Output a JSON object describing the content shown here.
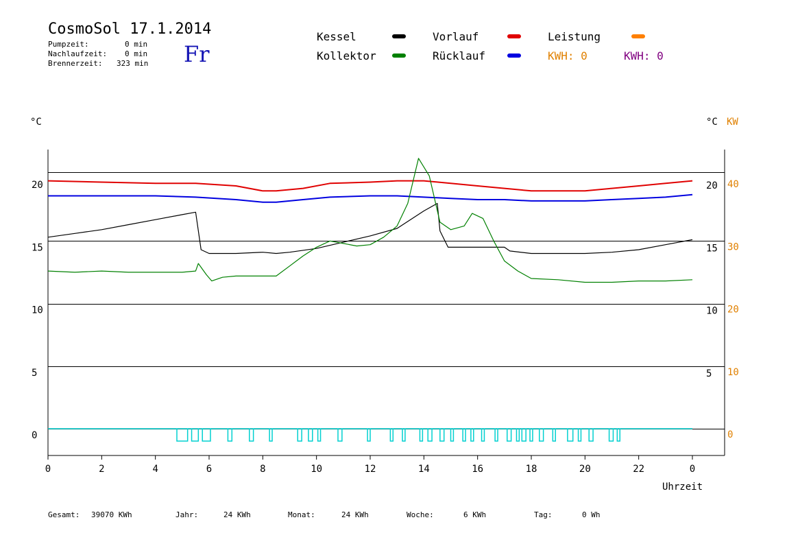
{
  "header": {
    "title": "CosmoSol 17.1.2014",
    "pumpzeit_label": "Pumpzeit:",
    "pumpzeit_value": "0 min",
    "nachlauf_label": "Nachlaufzeit:",
    "nachlauf_value": "0 min",
    "brenner_label": "Brennerzeit:",
    "brenner_value": "323 min",
    "day": "Fr"
  },
  "legend": {
    "kessel": "Kessel",
    "kollektor": "Kollektor",
    "vorlauf": "Vorlauf",
    "ruecklauf": "Rücklauf",
    "leistung": "Leistung",
    "kwh_orange": "KWH: 0",
    "kwh_purple": "KWH: 0"
  },
  "colors": {
    "kessel": "#000000",
    "kollektor": "#008000",
    "vorlauf": "#e00000",
    "ruecklauf": "#0000e0",
    "leistung": "#ff8000",
    "kwh2": "#800080",
    "pump": "#00d0d0",
    "orange_axis": "#e08000"
  },
  "axes": {
    "left_unit": "°C",
    "right_unit": "°C",
    "right_unit2": "KW",
    "xlabel": "Uhrzeit"
  },
  "footer": {
    "gesamt_label": "Gesamt:",
    "gesamt_value": "39070 KWh",
    "jahr_label": "Jahr:",
    "jahr_value": "24 KWh",
    "monat_label": "Monat:",
    "monat_value": "24 KWh",
    "woche_label": "Woche:",
    "woche_value": "6 KWh",
    "tag_label": "Tag:",
    "tag_value": "0 Wh"
  },
  "chart_data": {
    "type": "line",
    "xlabel": "Uhrzeit",
    "ylabel": "°C",
    "xlim": [
      0,
      24
    ],
    "ylim": [
      -2,
      22
    ],
    "x_tick_labels": [
      "0",
      "2",
      "4",
      "6",
      "8",
      "10",
      "12",
      "14",
      "16",
      "18",
      "20",
      "22",
      "0"
    ],
    "y_left_ticks": [
      0,
      5,
      10,
      15,
      20
    ],
    "y_right_inner_ticks": [
      5,
      10,
      15,
      20
    ],
    "y_right_kw_ticks": [
      0,
      10,
      20,
      30,
      40
    ],
    "series": [
      {
        "name": "Vorlauf",
        "color": "#e00000",
        "x": [
          0,
          2,
          4,
          5.5,
          7,
          8,
          8.5,
          9.5,
          10.5,
          12,
          13,
          14,
          15,
          16,
          17,
          18,
          19,
          20,
          21,
          22,
          23,
          24
        ],
        "y": [
          19.8,
          19.7,
          19.6,
          19.6,
          19.4,
          19.0,
          19.0,
          19.2,
          19.6,
          19.7,
          19.8,
          19.8,
          19.6,
          19.4,
          19.2,
          19.0,
          19.0,
          19.0,
          19.2,
          19.4,
          19.6,
          19.8
        ]
      },
      {
        "name": "Rücklauf",
        "color": "#0000e0",
        "x": [
          0,
          2,
          4,
          5.5,
          7,
          8,
          8.5,
          9.5,
          10.5,
          12,
          13,
          14,
          15,
          16,
          17,
          18,
          19,
          20,
          21,
          22,
          23,
          24
        ],
        "y": [
          18.6,
          18.6,
          18.6,
          18.5,
          18.3,
          18.1,
          18.1,
          18.3,
          18.5,
          18.6,
          18.6,
          18.5,
          18.4,
          18.3,
          18.3,
          18.2,
          18.2,
          18.2,
          18.3,
          18.4,
          18.5,
          18.7
        ]
      },
      {
        "name": "Kessel",
        "color": "#000000",
        "x": [
          0,
          1,
          2,
          3,
          4,
          5,
          5.5,
          5.7,
          6,
          7,
          8,
          8.5,
          9,
          10,
          11,
          12,
          13,
          14,
          14.5,
          14.6,
          14.9,
          16,
          17,
          17.2,
          18,
          19,
          20,
          21,
          22,
          23,
          24
        ],
        "y": [
          15.3,
          15.6,
          15.9,
          16.3,
          16.7,
          17.1,
          17.3,
          14.3,
          14.0,
          14.0,
          14.1,
          14.0,
          14.1,
          14.4,
          14.9,
          15.4,
          16.0,
          17.4,
          18.0,
          15.8,
          14.5,
          14.5,
          14.5,
          14.2,
          14.0,
          14.0,
          14.0,
          14.1,
          14.3,
          14.7,
          15.1
        ]
      },
      {
        "name": "Kollektor",
        "color": "#008000",
        "x": [
          0,
          1,
          2,
          3,
          4,
          5,
          5.5,
          5.6,
          5.9,
          6.1,
          6.5,
          7,
          8,
          8.5,
          9,
          9.5,
          10,
          10.5,
          11,
          11.5,
          12,
          12.5,
          13,
          13.4,
          13.8,
          14.2,
          14.6,
          15,
          15.5,
          15.8,
          16.2,
          16.6,
          17,
          17.5,
          18,
          19,
          20,
          21,
          22,
          23,
          24
        ],
        "y": [
          12.6,
          12.5,
          12.6,
          12.5,
          12.5,
          12.5,
          12.6,
          13.2,
          12.3,
          11.8,
          12.1,
          12.2,
          12.2,
          12.2,
          13.0,
          13.8,
          14.5,
          15.0,
          14.8,
          14.6,
          14.7,
          15.3,
          16.2,
          18.0,
          21.6,
          20.2,
          16.5,
          15.9,
          16.2,
          17.2,
          16.8,
          15.0,
          13.4,
          12.6,
          12.0,
          11.9,
          11.7,
          11.7,
          11.8,
          11.8,
          11.9
        ]
      },
      {
        "name": "Pumpe",
        "color": "#00d0d0",
        "pulses": [
          [
            4.8,
            5.2
          ],
          [
            5.35,
            5.6
          ],
          [
            5.75,
            6.05
          ],
          [
            6.7,
            6.85
          ],
          [
            7.5,
            7.65
          ],
          [
            8.25,
            8.35
          ],
          [
            9.3,
            9.45
          ],
          [
            9.7,
            9.85
          ],
          [
            10.05,
            10.15
          ],
          [
            10.8,
            10.95
          ],
          [
            11.9,
            12.0
          ],
          [
            12.75,
            12.85
          ],
          [
            13.2,
            13.3
          ],
          [
            13.85,
            13.95
          ],
          [
            14.15,
            14.3
          ],
          [
            14.6,
            14.75
          ],
          [
            15.0,
            15.1
          ],
          [
            15.45,
            15.55
          ],
          [
            15.75,
            15.85
          ],
          [
            16.15,
            16.25
          ],
          [
            16.65,
            16.75
          ],
          [
            17.1,
            17.25
          ],
          [
            17.45,
            17.55
          ],
          [
            17.65,
            17.8
          ],
          [
            17.95,
            18.05
          ],
          [
            18.3,
            18.45
          ],
          [
            18.8,
            18.9
          ],
          [
            19.35,
            19.55
          ],
          [
            19.75,
            19.85
          ],
          [
            20.15,
            20.3
          ],
          [
            20.9,
            21.05
          ],
          [
            21.2,
            21.3
          ]
        ]
      }
    ]
  }
}
